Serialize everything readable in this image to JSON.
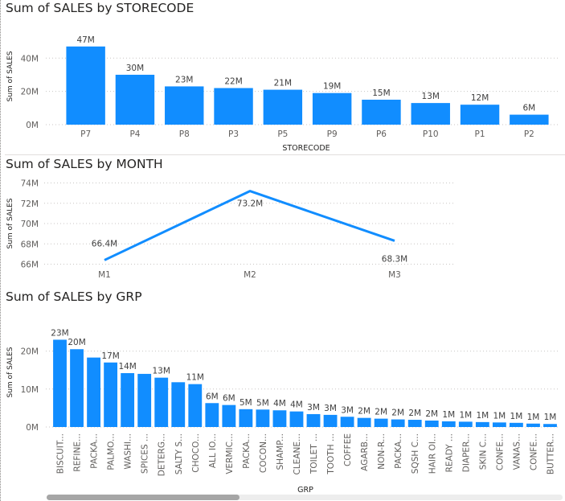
{
  "charts": {
    "store": {
      "title": "Sum of SALES by STORECODE",
      "xlabel": "STORECODE",
      "ylabel": "Sum of SALES",
      "ticks": [
        "0M",
        "20M",
        "40M"
      ]
    },
    "month": {
      "title": "Sum of SALES by MONTH",
      "ylabel": "Sum of SALES",
      "ticks": [
        "66M",
        "68M",
        "70M",
        "72M",
        "74M"
      ]
    },
    "grp": {
      "title": "Sum of SALES by GRP",
      "xlabel": "GRP",
      "ylabel": "Sum of SALES",
      "ticks": [
        "0M",
        "10M",
        "20M"
      ]
    }
  },
  "colors": {
    "bar": "#118dff",
    "grid": "#c8c6c4",
    "text": "#252423",
    "axis_text": "#605e5c"
  },
  "chart_data": [
    {
      "type": "bar",
      "title": "Sum of SALES by STORECODE",
      "xlabel": "STORECODE",
      "ylabel": "Sum of SALES",
      "categories": [
        "P7",
        "P4",
        "P8",
        "P3",
        "P5",
        "P9",
        "P6",
        "P10",
        "P1",
        "P2"
      ],
      "values": [
        47,
        30,
        23,
        22,
        21,
        19,
        15,
        13,
        12,
        6
      ],
      "labels": [
        "47M",
        "30M",
        "23M",
        "22M",
        "21M",
        "19M",
        "15M",
        "13M",
        "12M",
        "6M"
      ],
      "unit": "M",
      "ylim": [
        0,
        50
      ],
      "grid": true
    },
    {
      "type": "line",
      "title": "Sum of SALES by MONTH",
      "ylabel": "Sum of SALES",
      "categories": [
        "M1",
        "M2",
        "M3"
      ],
      "values": [
        66.4,
        73.2,
        68.3
      ],
      "labels": [
        "66.4M",
        "73.2M",
        "68.3M"
      ],
      "unit": "M",
      "ylim": [
        66,
        74
      ],
      "grid": true
    },
    {
      "type": "bar",
      "title": "Sum of SALES by GRP",
      "xlabel": "GRP",
      "ylabel": "Sum of SALES",
      "categories": [
        "BISCUIT...",
        "REFINE...",
        "PACKA...",
        "PALMO...",
        "WASHI...",
        "SPICES ...",
        "DETERG...",
        "SALTY S...",
        "CHOCO...",
        "ALL IO...",
        "VERMIC...",
        "PACKA...",
        "COCON...",
        "SHAMP...",
        "CLEANE...",
        "TOILET ...",
        "TOOTH ...",
        "COFFEE",
        "AGARB...",
        "NON-R...",
        "PACKA...",
        "SQSH C...",
        "HAIR OI...",
        "READY ...",
        "DIAPER...",
        "SKIN C...",
        "CONFE...",
        "VANAS...",
        "CONFE...",
        "BUTTER..."
      ],
      "values": [
        23,
        20.5,
        18.3,
        17,
        14.2,
        14,
        13,
        11.8,
        11.3,
        6.3,
        5.8,
        4.7,
        4.6,
        4.4,
        4.1,
        3.4,
        3.2,
        2.7,
        2.4,
        2.2,
        2.0,
        1.9,
        1.7,
        1.5,
        1.4,
        1.3,
        1.2,
        1.1,
        0.9,
        0.8
      ],
      "labels": [
        "23M",
        "20M",
        "",
        "17M",
        "14M",
        "",
        "13M",
        "",
        "11M",
        "6M",
        "6M",
        "5M",
        "5M",
        "4M",
        "4M",
        "3M",
        "3M",
        "3M",
        "2M",
        "2M",
        "2M",
        "2M",
        "2M",
        "1M",
        "1M",
        "1M",
        "1M",
        "1M",
        "1M",
        "1M"
      ],
      "unit": "M",
      "ylim": [
        0,
        25
      ],
      "grid": true
    }
  ]
}
